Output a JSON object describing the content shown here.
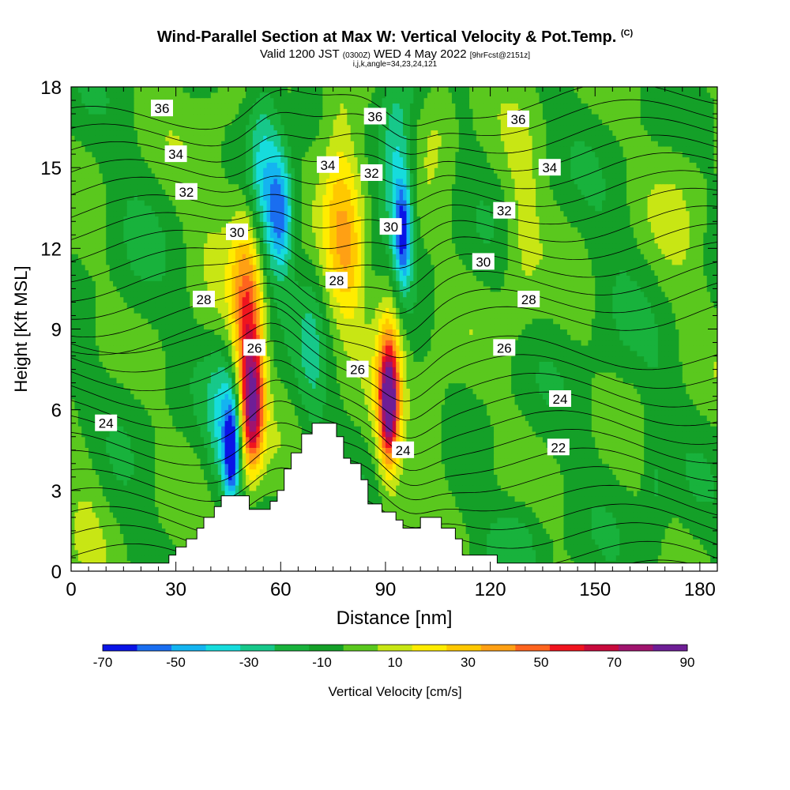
{
  "header": {
    "title_main": "Wind-Parallel Section at Max W: Vertical Velocity & Pot.Temp.",
    "title_copyright": "(C)",
    "valid_prefix": "Valid 1200 JST",
    "valid_utc": "(0300Z)",
    "valid_date": "WED 4 May 2022",
    "forecast_tag": "[9hrFcst@2151z]",
    "indices": "i,j,k,angle=34,23,24,121"
  },
  "colorbar": {
    "label": "Vertical Velocity [cm/s]",
    "tick_labels": [
      "-70",
      "-50",
      "-30",
      "-10",
      "10",
      "30",
      "50",
      "70",
      "90"
    ],
    "bounds": [
      -70,
      -60,
      -50,
      -40,
      -30,
      -20,
      -10,
      0,
      10,
      20,
      30,
      40,
      50,
      60,
      70,
      80,
      90
    ],
    "colors": [
      "#0a14e6",
      "#1a6ef0",
      "#14b4f0",
      "#16dcdc",
      "#17c88a",
      "#18b23c",
      "#14a028",
      "#5ac81e",
      "#c8e614",
      "#ffec00",
      "#ffc800",
      "#ffa014",
      "#ff641e",
      "#f0141e",
      "#c80a3c",
      "#a0146e",
      "#6e1e96"
    ]
  },
  "chart_data": {
    "type": "heatmap",
    "title": "Wind-Parallel Section at Max W: Vertical Velocity & Pot.Temp.",
    "xlabel": "Distance [nm]",
    "ylabel": "Height [Kft MSL]",
    "xlim": [
      0,
      185
    ],
    "ylim": [
      0,
      18
    ],
    "x_ticks": [
      0,
      30,
      60,
      90,
      120,
      150,
      180
    ],
    "y_ticks": [
      0,
      3,
      6,
      9,
      12,
      15,
      18
    ],
    "filled_field": "Vertical Velocity [cm/s]",
    "filled_features": [
      {
        "x": 46,
        "y": 4.4,
        "sx": 1.6,
        "sy": 1.3,
        "value": -60
      },
      {
        "x": 44,
        "y": 5.6,
        "sx": 3.5,
        "sy": 1.8,
        "value": -30
      },
      {
        "x": 55,
        "y": 15.2,
        "sx": 4,
        "sy": 2.5,
        "value": -35
      },
      {
        "x": 60,
        "y": 13.2,
        "sx": 2.6,
        "sy": 1.5,
        "value": -45
      },
      {
        "x": 69,
        "y": 8.2,
        "sx": 3,
        "sy": 3,
        "value": -15
      },
      {
        "x": 93,
        "y": 15.2,
        "sx": 3.5,
        "sy": 2.2,
        "value": -35
      },
      {
        "x": 95,
        "y": 12.6,
        "sx": 1.8,
        "sy": 1.4,
        "value": -55
      },
      {
        "x": 52,
        "y": 6,
        "sx": 2.2,
        "sy": 1.5,
        "value": 65
      },
      {
        "x": 51,
        "y": 8,
        "sx": 2.8,
        "sy": 2.6,
        "value": 45
      },
      {
        "x": 50,
        "y": 11.5,
        "sx": 3.5,
        "sy": 2.8,
        "value": 30
      },
      {
        "x": 91,
        "y": 6.2,
        "sx": 1.6,
        "sy": 1.3,
        "value": 75
      },
      {
        "x": 91,
        "y": 7.2,
        "sx": 2.8,
        "sy": 2.6,
        "value": 45
      },
      {
        "x": 77,
        "y": 14.5,
        "sx": 4.2,
        "sy": 3,
        "value": 30
      },
      {
        "x": 80,
        "y": 11.5,
        "sx": 3.5,
        "sy": 2,
        "value": 22
      },
      {
        "x": 129,
        "y": 12.5,
        "sx": 4,
        "sy": 2.5,
        "value": 15
      },
      {
        "x": 105,
        "y": 17,
        "sx": 4,
        "sy": 1.5,
        "value": 15
      },
      {
        "x": 104,
        "y": 5.5,
        "sx": 4,
        "sy": 1.8,
        "value": 12
      },
      {
        "x": 128,
        "y": 1.3,
        "sx": 5.5,
        "sy": 1.1,
        "value": -15
      },
      {
        "x": 167,
        "y": 3.2,
        "sx": 2.5,
        "sy": 2.5,
        "value": -12
      },
      {
        "x": 155,
        "y": 10,
        "sx": 6,
        "sy": 3,
        "value": -5
      },
      {
        "x": 40,
        "y": 14.5,
        "sx": 5,
        "sy": 3,
        "value": 8
      },
      {
        "x": 18,
        "y": 10,
        "sx": 5,
        "sy": 4,
        "value": -5
      },
      {
        "x": 5,
        "y": 3,
        "sx": 4,
        "sy": 2,
        "value": 8
      },
      {
        "x": 175,
        "y": 14,
        "sx": 6,
        "sy": 3,
        "value": 8
      }
    ],
    "contour_field": "Potential Temperature",
    "contour_labels": [
      {
        "text": "36",
        "x": 26,
        "y": 17.2
      },
      {
        "text": "34",
        "x": 30,
        "y": 15.5
      },
      {
        "text": "32",
        "x": 33,
        "y": 14.1
      },
      {
        "text": "30",
        "x": 47.5,
        "y": 12.6
      },
      {
        "text": "28",
        "x": 38,
        "y": 10.1
      },
      {
        "text": "26",
        "x": 52.5,
        "y": 8.3
      },
      {
        "text": "24",
        "x": 10,
        "y": 5.5
      },
      {
        "text": "34",
        "x": 73.5,
        "y": 15.1
      },
      {
        "text": "32",
        "x": 86,
        "y": 14.8
      },
      {
        "text": "36",
        "x": 87,
        "y": 16.9
      },
      {
        "text": "30",
        "x": 91.5,
        "y": 12.8
      },
      {
        "text": "28",
        "x": 76,
        "y": 10.8
      },
      {
        "text": "26",
        "x": 82,
        "y": 7.5
      },
      {
        "text": "24",
        "x": 95,
        "y": 4.5
      },
      {
        "text": "36",
        "x": 128,
        "y": 16.8
      },
      {
        "text": "34",
        "x": 137,
        "y": 15
      },
      {
        "text": "32",
        "x": 124,
        "y": 13.4
      },
      {
        "text": "30",
        "x": 118,
        "y": 11.5
      },
      {
        "text": "28",
        "x": 131,
        "y": 10.1
      },
      {
        "text": "26",
        "x": 124,
        "y": 8.3
      },
      {
        "text": "24",
        "x": 140,
        "y": 6.4
      },
      {
        "text": "22",
        "x": 139.5,
        "y": 4.6
      }
    ],
    "terrain": [
      [
        0,
        0.3
      ],
      [
        25,
        0.3
      ],
      [
        28,
        0.6
      ],
      [
        30,
        0.9
      ],
      [
        33,
        1.2
      ],
      [
        36,
        1.6
      ],
      [
        38,
        2
      ],
      [
        41,
        2.4
      ],
      [
        43,
        2.8
      ],
      [
        49,
        2.8
      ],
      [
        51,
        2.3
      ],
      [
        55,
        2.3
      ],
      [
        57,
        2.6
      ],
      [
        59,
        3
      ],
      [
        61,
        3.8
      ],
      [
        63,
        4.4
      ],
      [
        66,
        5.1
      ],
      [
        69,
        5.5
      ],
      [
        74,
        5.5
      ],
      [
        76,
        5
      ],
      [
        78,
        4.2
      ],
      [
        80,
        4
      ],
      [
        83,
        3.4
      ],
      [
        85,
        2.5
      ],
      [
        89,
        2.2
      ],
      [
        93,
        1.9
      ],
      [
        95,
        1.6
      ],
      [
        98,
        1.6
      ],
      [
        100,
        2
      ],
      [
        104,
        2
      ],
      [
        106,
        1.6
      ],
      [
        110,
        1.2
      ],
      [
        112,
        0.6
      ],
      [
        120,
        0.6
      ],
      [
        122,
        0.3
      ],
      [
        185,
        0.3
      ]
    ]
  }
}
